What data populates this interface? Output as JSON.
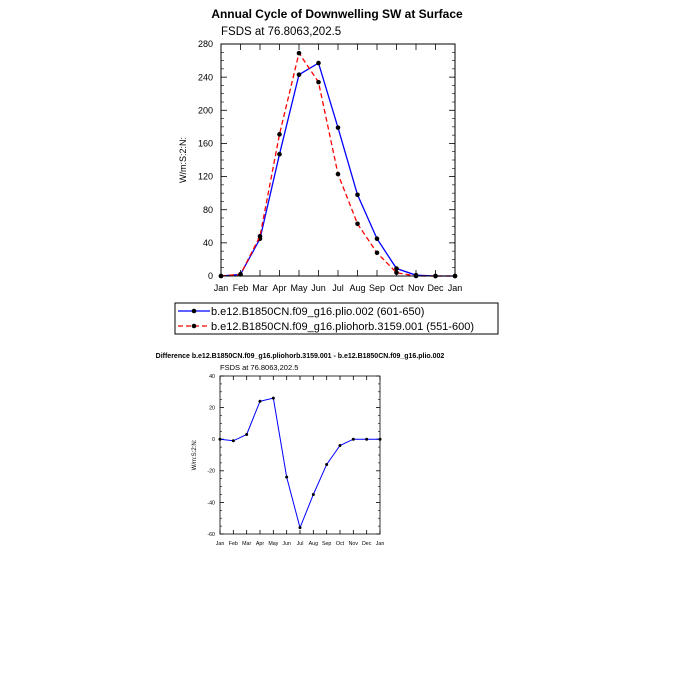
{
  "chart_data": [
    {
      "type": "line",
      "title": "Annual Cycle of Downwelling SW at Surface",
      "subtitle": "FSDS at 76.8063,202.5",
      "ylabel": "W/m:S:2:N:",
      "xlabel": "",
      "categories": [
        "Jan",
        "Feb",
        "Mar",
        "Apr",
        "May",
        "Jun",
        "Jul",
        "Aug",
        "Sep",
        "Oct",
        "Nov",
        "Dec",
        "Jan"
      ],
      "ylim": [
        0,
        280
      ],
      "yticks": [
        0,
        40,
        80,
        120,
        160,
        200,
        240,
        280
      ],
      "series": [
        {
          "name": "b.e12.B1850CN.f09_g16.plio.002 (601-650)",
          "color": "#0000ff",
          "dash": "solid",
          "values": [
            0,
            2,
            45,
            147,
            243,
            257,
            179,
            98,
            45,
            9,
            1,
            0,
            0
          ]
        },
        {
          "name": "b.e12.B1850CN.f09_g16.pliohorb.3159.001 (551-600)",
          "color": "#ff0000",
          "dash": "dashed",
          "values": [
            0,
            2,
            48,
            171,
            269,
            234,
            123,
            63,
            28,
            4,
            0,
            0,
            0
          ]
        }
      ],
      "legend_position": "bottom"
    },
    {
      "type": "line",
      "title": "Difference b.e12.B1850CN.f09_g16.pliohorb.3159.001 - b.e12.B1850CN.f09_g16.plio.002",
      "subtitle": "FSDS at 76.8063,202.5",
      "ylabel": "W/m:S:2:N:",
      "xlabel": "",
      "categories": [
        "Jan",
        "Feb",
        "Mar",
        "Apr",
        "May",
        "Jun",
        "Jul",
        "Aug",
        "Sep",
        "Oct",
        "Nov",
        "Dec",
        "Jan"
      ],
      "ylim": [
        -60,
        40
      ],
      "yticks": [
        -60,
        -40,
        -20,
        0,
        20,
        40
      ],
      "series": [
        {
          "name": "",
          "color": "#0000ff",
          "dash": "solid",
          "values": [
            0,
            -1,
            3,
            24,
            26,
            -24,
            -56,
            -35,
            -16,
            -4,
            0,
            0,
            0
          ]
        }
      ]
    }
  ]
}
